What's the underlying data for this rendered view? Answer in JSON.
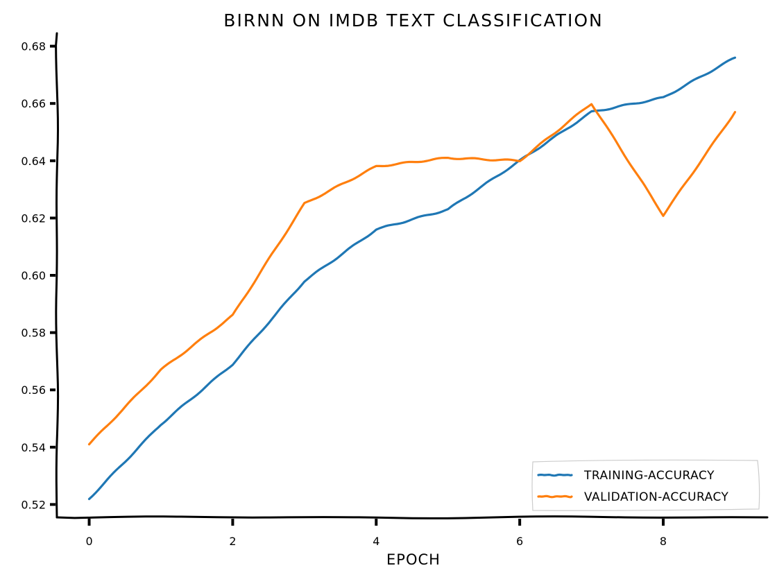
{
  "chart_data": {
    "type": "line",
    "title": "BIRNN ON IMDB TEXT CLASSIFICATION",
    "xlabel": "EPOCH",
    "ylabel": "",
    "xlim": [
      -0.45,
      9.45
    ],
    "ylim": [
      0.5155,
      0.6845
    ],
    "x_ticks": [
      0,
      2,
      4,
      6,
      8
    ],
    "y_ticks": [
      0.52,
      0.54,
      0.56,
      0.58,
      0.6,
      0.62,
      0.64,
      0.66,
      0.68
    ],
    "x_tick_labels": [
      "0",
      "2",
      "4",
      "6",
      "8"
    ],
    "y_tick_labels": [
      "0.52",
      "0.54",
      "0.56",
      "0.58",
      "0.60",
      "0.62",
      "0.64",
      "0.66",
      "0.68"
    ],
    "grid": false,
    "legend_position": "bottom-right",
    "series": [
      {
        "name": "TRAINING-ACCURACY",
        "color": "#1f77b4",
        "x": [
          0,
          1,
          2,
          3,
          4,
          5,
          6,
          7,
          8,
          9
        ],
        "y": [
          0.522,
          0.548,
          0.569,
          0.598,
          0.616,
          0.623,
          0.64,
          0.657,
          0.662,
          0.676
        ]
      },
      {
        "name": "VALIDATION-ACCURACY",
        "color": "#ff7f0e",
        "x": [
          0,
          1,
          2,
          3,
          4,
          5,
          6,
          7,
          8,
          9
        ],
        "y": [
          0.541,
          0.567,
          0.586,
          0.625,
          0.638,
          0.641,
          0.64,
          0.66,
          0.621,
          0.657
        ]
      }
    ]
  }
}
